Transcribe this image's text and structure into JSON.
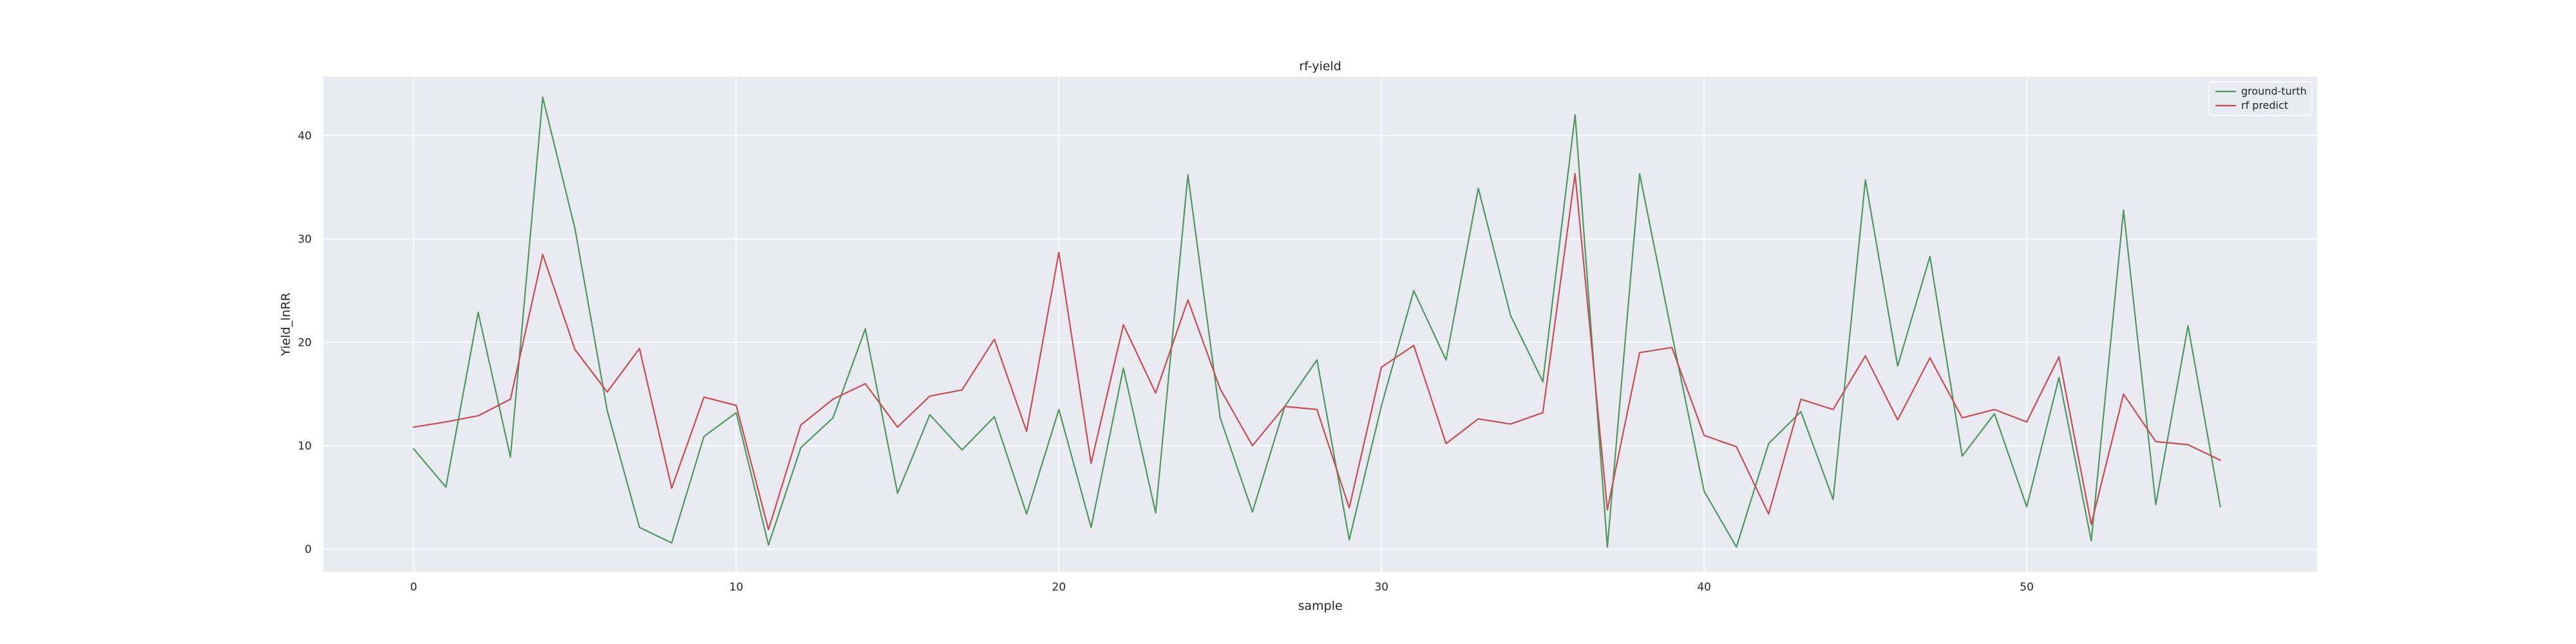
{
  "chart_data": {
    "type": "line",
    "title": "rf-yield",
    "xlabel": "sample",
    "ylabel": "Yield_lnRR",
    "xlim": [
      -2.8,
      59.0
    ],
    "ylim": [
      -2.2,
      45.7
    ],
    "xticks": [
      0,
      10,
      20,
      30,
      40,
      50
    ],
    "yticks": [
      0,
      10,
      20,
      30,
      40
    ],
    "grid": true,
    "legend_position": "top-right",
    "background_color": "#eaeaf2",
    "grid_color": "#ffffff",
    "x": [
      0,
      1,
      2,
      3,
      4,
      5,
      6,
      7,
      8,
      9,
      10,
      11,
      12,
      13,
      14,
      15,
      16,
      17,
      18,
      19,
      20,
      21,
      22,
      23,
      24,
      25,
      26,
      27,
      28,
      29,
      30,
      31,
      32,
      33,
      34,
      35,
      36,
      37,
      38,
      39,
      40,
      41,
      42,
      43,
      44,
      45,
      46,
      47,
      48,
      49,
      50,
      51,
      52,
      53,
      54,
      55,
      56
    ],
    "series": [
      {
        "name": "ground-turth",
        "color": "#4c9a5e",
        "values": [
          9.7,
          6.0,
          22.9,
          8.9,
          43.7,
          31.0,
          13.4,
          2.1,
          0.6,
          10.9,
          13.2,
          0.4,
          9.8,
          12.7,
          21.3,
          5.4,
          13.0,
          9.6,
          12.8,
          3.4,
          13.5,
          2.1,
          17.5,
          3.5,
          36.2,
          12.7,
          3.6,
          13.8,
          18.3,
          0.9,
          13.9,
          25.0,
          18.3,
          34.9,
          22.6,
          16.2,
          42.0,
          0.2,
          36.3,
          20.8,
          5.6,
          0.2,
          10.2,
          13.3,
          4.8,
          35.7,
          17.7,
          28.3,
          9.0,
          13.1,
          4.1,
          16.6,
          0.8,
          32.8,
          4.3,
          21.6,
          4.1
        ]
      },
      {
        "name": "rf predict",
        "color": "#c44e52",
        "values": [
          11.8,
          12.3,
          12.9,
          14.5,
          28.5,
          19.3,
          15.2,
          19.4,
          5.9,
          14.7,
          13.9,
          1.9,
          12.0,
          14.5,
          16.0,
          11.8,
          14.8,
          15.4,
          20.3,
          11.4,
          28.7,
          8.3,
          21.7,
          15.1,
          24.1,
          15.5,
          10.0,
          13.8,
          13.5,
          4.0,
          17.6,
          19.7,
          10.2,
          12.6,
          12.1,
          13.2,
          36.3,
          3.8,
          19.0,
          19.5,
          11.0,
          9.9,
          3.4,
          14.5,
          13.5,
          18.7,
          12.5,
          18.5,
          12.7,
          13.5,
          12.3,
          18.6,
          2.4,
          15.0,
          10.4,
          10.1,
          8.6
        ]
      }
    ]
  }
}
